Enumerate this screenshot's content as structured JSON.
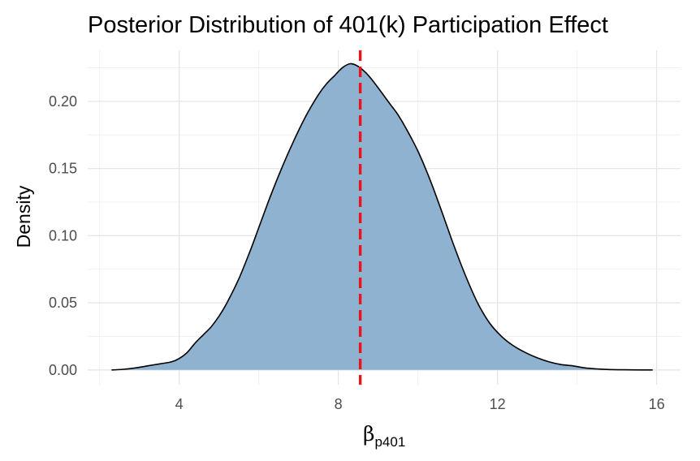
{
  "chart_data": {
    "type": "area",
    "title": "Posterior Distribution of 401(k) Participation Effect",
    "xlabel_symbol": "β",
    "xlabel_subscript": "p401",
    "ylabel": "Density",
    "xlim": [
      1.7,
      16.6
    ],
    "ylim": [
      -0.011,
      0.238
    ],
    "x_ticks": [
      4,
      8,
      12,
      16
    ],
    "x_tick_labels": [
      "4",
      "8",
      "12",
      "16"
    ],
    "y_ticks": [
      0.0,
      0.05,
      0.1,
      0.15,
      0.2
    ],
    "y_tick_labels": [
      "0.00",
      "0.05",
      "0.10",
      "0.15",
      "0.20"
    ],
    "grid": true,
    "fill_color": "#8fb2d1",
    "line_color": "#000000",
    "vline": {
      "x": 8.55,
      "color": "#e8141b",
      "style": "dashed"
    },
    "density": {
      "x": [
        2.3,
        2.6,
        2.9,
        3.2,
        3.5,
        3.8,
        4.0,
        4.2,
        4.4,
        4.6,
        4.8,
        5.0,
        5.2,
        5.5,
        5.8,
        6.0,
        6.3,
        6.6,
        6.9,
        7.2,
        7.5,
        7.7,
        7.9,
        8.1,
        8.3,
        8.5,
        8.7,
        8.9,
        9.1,
        9.3,
        9.5,
        9.7,
        10.0,
        10.3,
        10.6,
        10.9,
        11.2,
        11.5,
        11.8,
        12.1,
        12.4,
        12.7,
        13.0,
        13.3,
        13.6,
        13.9,
        14.2,
        14.5,
        14.8,
        15.2,
        15.6,
        15.9
      ],
      "y": [
        0.0,
        0.0005,
        0.0015,
        0.003,
        0.0045,
        0.006,
        0.0085,
        0.013,
        0.02,
        0.026,
        0.032,
        0.04,
        0.05,
        0.068,
        0.09,
        0.106,
        0.13,
        0.152,
        0.172,
        0.19,
        0.205,
        0.213,
        0.219,
        0.225,
        0.228,
        0.226,
        0.221,
        0.214,
        0.206,
        0.198,
        0.19,
        0.18,
        0.163,
        0.142,
        0.118,
        0.093,
        0.07,
        0.05,
        0.035,
        0.025,
        0.018,
        0.013,
        0.009,
        0.006,
        0.004,
        0.003,
        0.0015,
        0.0008,
        0.0003,
        0.0001,
        0.0,
        0.0
      ]
    }
  }
}
